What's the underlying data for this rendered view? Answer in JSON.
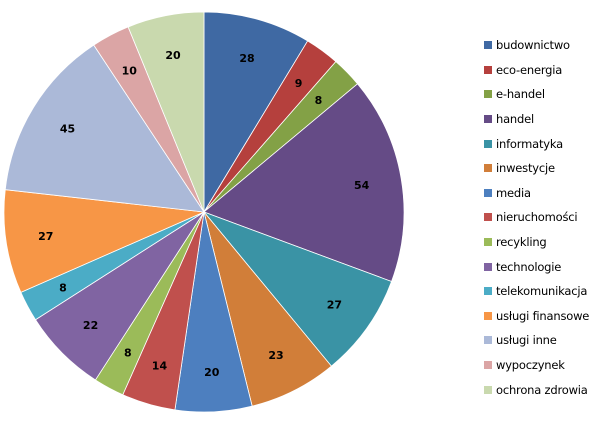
{
  "chart_data": {
    "type": "pie",
    "title": "",
    "start": "top, clockwise",
    "legend_position": "right",
    "categories": [
      "budownictwo",
      "eco-energia",
      "e-handel",
      "handel",
      "informatyka",
      "inwestycje",
      "media",
      "nieruchomości",
      "recykling",
      "technologie",
      "telekomunikacja",
      "usługi finansowe",
      "usługi inne",
      "wypoczynek",
      "ochrona zdrowia"
    ],
    "values": [
      28,
      9,
      8,
      54,
      27,
      23,
      20,
      14,
      8,
      22,
      8,
      27,
      45,
      10,
      20
    ],
    "colors": [
      "#3F69A3",
      "#B5403D",
      "#83A146",
      "#654B86",
      "#3A93A5",
      "#D17E39",
      "#4D7FBF",
      "#C0504D",
      "#9BBB59",
      "#8064A2",
      "#4BACC6",
      "#F79646",
      "#ABB9D8",
      "#DBA5A5",
      "#C9D9AE"
    ]
  }
}
